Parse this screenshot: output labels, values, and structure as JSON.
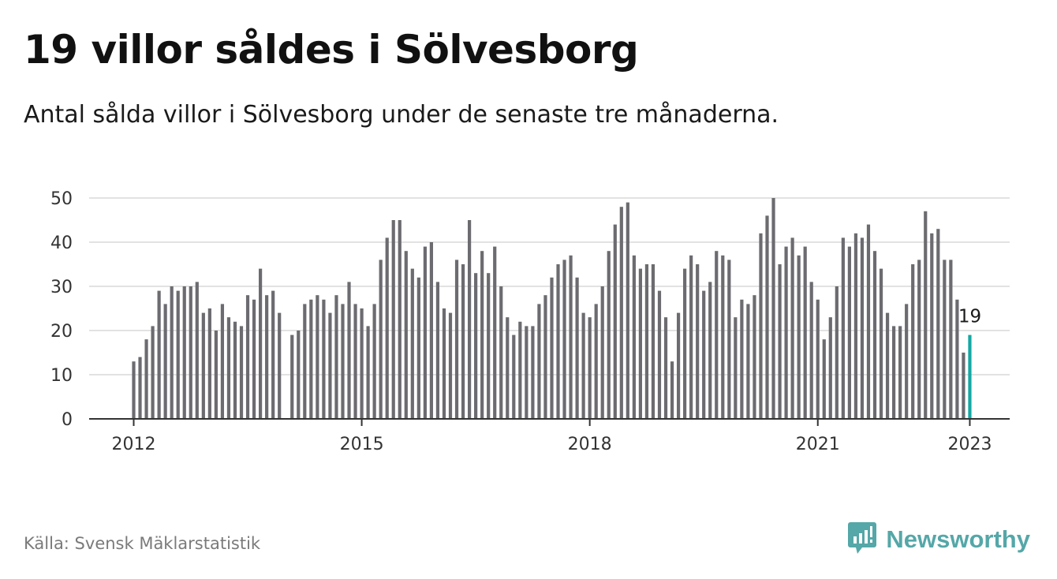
{
  "title": "19 villor såldes i Sölvesborg",
  "subtitle": "Antal sålda villor i Sölvesborg under de senaste tre månaderna.",
  "source": "Källa: Svensk Mäklarstatistik",
  "brand": {
    "name": "Newsworthy",
    "icon": "newsworthy-logo-icon",
    "color": "#55a7a8"
  },
  "colors": {
    "bar": "#6b6b70",
    "highlight": "#14a8a3",
    "grid": "#d9d9d9",
    "axis": "#333333"
  },
  "chart_data": {
    "type": "bar",
    "title": "19 villor såldes i Sölvesborg",
    "subtitle": "Antal sålda villor i Sölvesborg under de senaste tre månaderna.",
    "xlabel": "",
    "ylabel": "",
    "ylim": [
      0,
      50
    ],
    "yticks": [
      0,
      10,
      20,
      30,
      40,
      50
    ],
    "grid": true,
    "x_start": "2012-01",
    "xticks": [
      "2012",
      "2015",
      "2018",
      "2021",
      "2023"
    ],
    "highlight_last": true,
    "last_value_label": "19",
    "series": [
      {
        "values": [
          13,
          14,
          18,
          21,
          29,
          26,
          30,
          29,
          30,
          30,
          31,
          24,
          25,
          20,
          26,
          23,
          22,
          21,
          28,
          27,
          34,
          28,
          29,
          24,
          null,
          19,
          20,
          26,
          27,
          28,
          27,
          24,
          28,
          26,
          31,
          26,
          25,
          21,
          26,
          36,
          41,
          45,
          45,
          38,
          34,
          32,
          39,
          40,
          31,
          25,
          24,
          36,
          35,
          45,
          33,
          38,
          33,
          39,
          30,
          23,
          19,
          22,
          21,
          21,
          26,
          28,
          32,
          35,
          36,
          37,
          32,
          24,
          23,
          26,
          30,
          38,
          44,
          48,
          49,
          37,
          34,
          35,
          35,
          29,
          23,
          13,
          24,
          34,
          37,
          35,
          29,
          31,
          38,
          37,
          36,
          23,
          27,
          26,
          28,
          42,
          46,
          50,
          35,
          39,
          41,
          37,
          39,
          31,
          27,
          18,
          23,
          30,
          41,
          39,
          42,
          41,
          44,
          38,
          34,
          24,
          21,
          21,
          26,
          35,
          36,
          47,
          42,
          43,
          36,
          36,
          27,
          15,
          19
        ]
      }
    ]
  }
}
